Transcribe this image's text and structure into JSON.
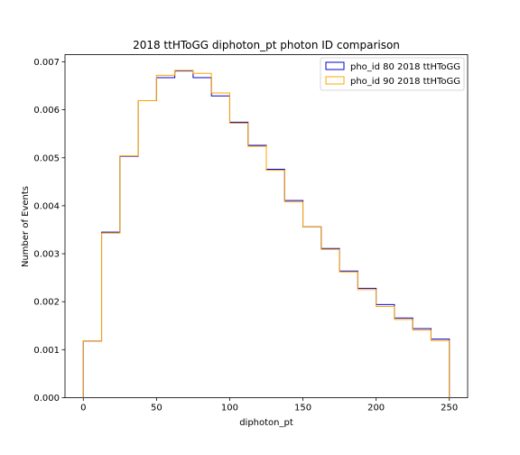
{
  "chart_data": {
    "type": "step-histogram",
    "title": "2018 ttHToGG diphoton_pt photon ID comparison",
    "xlabel": "diphoton_pt",
    "ylabel": "Number of Events",
    "xlim": [
      -12.5,
      262.5
    ],
    "ylim": [
      0,
      0.00715
    ],
    "x_ticks": [
      0,
      50,
      100,
      150,
      200,
      250
    ],
    "x_tick_labels": [
      "0",
      "50",
      "100",
      "150",
      "200",
      "250"
    ],
    "y_ticks": [
      0,
      0.001,
      0.002,
      0.003,
      0.004,
      0.005,
      0.006,
      0.007
    ],
    "y_tick_labels": [
      "0.000",
      "0.001",
      "0.002",
      "0.003",
      "0.004",
      "0.005",
      "0.006",
      "0.007"
    ],
    "bin_edges": [
      0,
      12.5,
      25,
      37.5,
      50,
      62.5,
      75,
      87.5,
      100,
      112.5,
      125,
      137.5,
      150,
      162.5,
      175,
      187.5,
      200,
      212.5,
      225,
      237.5,
      250
    ],
    "legend_position": "upper right",
    "grid": false,
    "series": [
      {
        "name": "pho_id 80 2018 ttHToGG",
        "color": "#0000cc",
        "values": [
          0.00118,
          0.00345,
          0.00503,
          0.00619,
          0.00667,
          0.00681,
          0.00667,
          0.00629,
          0.00574,
          0.00526,
          0.00476,
          0.00411,
          0.00356,
          0.00311,
          0.00264,
          0.00228,
          0.00194,
          0.00166,
          0.00144,
          0.00122
        ]
      },
      {
        "name": "pho_id 90 2018 ttHToGG",
        "color": "#ffa500",
        "values": [
          0.00118,
          0.00343,
          0.00504,
          0.00619,
          0.00672,
          0.00682,
          0.00676,
          0.00635,
          0.00572,
          0.00524,
          0.00474,
          0.00408,
          0.00356,
          0.00309,
          0.00262,
          0.00225,
          0.0019,
          0.00163,
          0.00141,
          0.00119
        ]
      }
    ]
  }
}
